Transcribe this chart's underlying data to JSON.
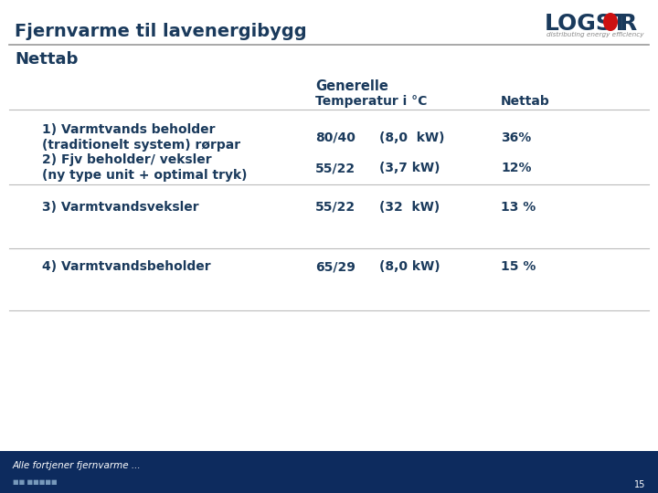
{
  "title": "Fjernvarme til lavenergibygg",
  "subtitle": "Nettab",
  "bg_color": "#ffffff",
  "title_color": "#1a3a5c",
  "header_line_color": "#999999",
  "col_header1": "Generelle",
  "col_header2": "Temperatur i °C",
  "col_header3": "Nettab",
  "rows": [
    {
      "label1": "1) Varmtvands beholder",
      "label2": "(traditionelt system) rørpar",
      "temp": "80/40",
      "power": "(8,0  kW)",
      "nettab": "36%"
    },
    {
      "label1": "2) Fjv beholder/ veksler",
      "label2": "(ny type unit + optimal tryk)",
      "temp": "55/22",
      "power": "(3,7 kW)",
      "nettab": "12%"
    },
    {
      "label1": "3) Varmtvandsveksler",
      "label2": "",
      "temp": "55/22",
      "power": "(32  kW)",
      "nettab": "13 %"
    },
    {
      "label1": "4) Varmtvandsbeholder",
      "label2": "",
      "temp": "65/29",
      "power": "(8,0 kW)",
      "nettab": "15 %"
    }
  ],
  "footer_text": "Alle fortjener fjernvarme ...",
  "footer_bg": "#0d2b5e",
  "footer_text_color": "#ffffff",
  "page_number": "15",
  "logstor_subtext": "distributing energy efficiency",
  "logstor_text_color": "#1a3a5c",
  "logstor_dot_color": "#cc1111",
  "sep_color": "#bbbbbb",
  "title_line_color": "#999999"
}
